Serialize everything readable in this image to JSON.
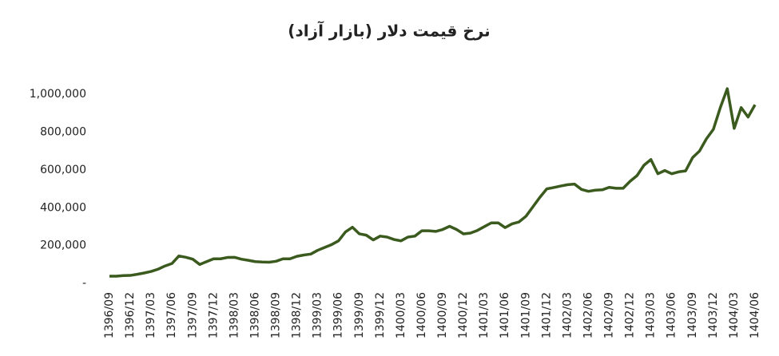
{
  "chart_data": {
    "type": "line",
    "title": "نرخ قیمت دلار (بازار آزاد)",
    "categories": [
      "1396/09",
      null,
      null,
      "1396/12",
      null,
      null,
      "1397/03",
      null,
      null,
      "1397/06",
      null,
      null,
      "1397/09",
      null,
      null,
      "1397/12",
      null,
      null,
      "1398/03",
      null,
      null,
      "1398/06",
      null,
      null,
      "1398/09",
      null,
      null,
      "1398/12",
      null,
      null,
      "1399/03",
      null,
      null,
      "1399/06",
      null,
      null,
      "1399/09",
      null,
      null,
      "1399/12",
      null,
      null,
      "1400/03",
      null,
      null,
      "1400/06",
      null,
      null,
      "1400/09",
      null,
      null,
      "1400/12",
      null,
      null,
      "1401/03",
      null,
      null,
      "1401/06",
      null,
      null,
      "1401/09",
      null,
      null,
      "1401/12",
      null,
      null,
      "1402/03",
      null,
      null,
      "1402/06",
      null,
      null,
      "1402/09",
      null,
      null,
      "1402/12",
      null,
      null,
      "1403/03",
      null,
      null,
      "1403/06",
      null,
      null,
      "1403/09",
      null,
      null,
      "1403/12",
      null,
      null,
      "1404/03",
      null,
      null,
      "1404/06"
    ],
    "values": [
      38000,
      38000,
      41000,
      42000,
      48000,
      55000,
      63000,
      75000,
      92000,
      105000,
      145000,
      138000,
      128000,
      100000,
      115000,
      130000,
      130000,
      137000,
      138000,
      128000,
      122000,
      115000,
      113000,
      112000,
      117000,
      130000,
      130000,
      143000,
      150000,
      155000,
      175000,
      190000,
      205000,
      225000,
      272000,
      297000,
      262000,
      255000,
      230000,
      250000,
      245000,
      232000,
      225000,
      245000,
      250000,
      278000,
      278000,
      275000,
      285000,
      302000,
      285000,
      262000,
      266000,
      280000,
      300000,
      320000,
      320000,
      295000,
      315000,
      325000,
      355000,
      405000,
      455000,
      500000,
      507000,
      515000,
      522000,
      525000,
      497000,
      487000,
      493000,
      495000,
      508000,
      503000,
      503000,
      540000,
      570000,
      625000,
      655000,
      580000,
      597000,
      580000,
      590000,
      595000,
      665000,
      700000,
      765000,
      815000,
      930000,
      1030000,
      820000,
      930000,
      880000,
      945000
    ],
    "color": "#3b5a1e",
    "ylim": [
      0,
      1060000
    ],
    "yticks": [
      {
        "value": 0,
        "label": "-"
      },
      {
        "value": 200000,
        "label": "200,000"
      },
      {
        "value": 400000,
        "label": "400,000"
      },
      {
        "value": 600000,
        "label": "600,000"
      },
      {
        "value": 800000,
        "label": "800,000"
      },
      {
        "value": 1000000,
        "label": "1,000,000"
      }
    ],
    "grid": false
  }
}
